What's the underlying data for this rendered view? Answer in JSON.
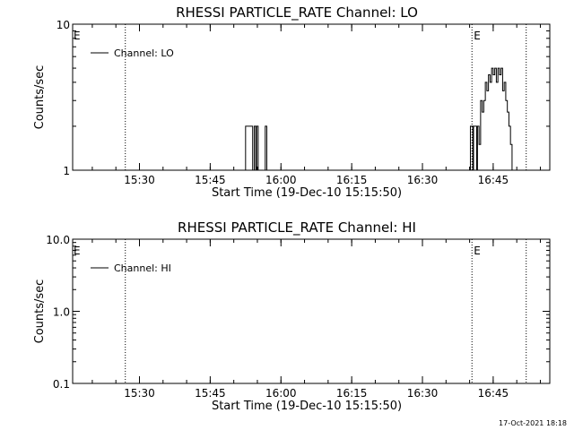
{
  "chart_data": [
    {
      "type": "line",
      "title": "RHESSI PARTICLE_RATE Channel: LO",
      "xlabel": "Start Time (19-Dec-10 15:15:50)",
      "ylabel": "Counts/sec",
      "y_scale": "log",
      "ylim": [
        1,
        10
      ],
      "y_ticks": [
        1,
        10
      ],
      "y_tick_labels": [
        "1",
        "10"
      ],
      "xlim": [
        "15:15:50",
        "16:57:00"
      ],
      "x_ticks": [
        "15:30",
        "15:45",
        "16:00",
        "16:15",
        "16:30",
        "16:45"
      ],
      "legend": {
        "placement": "top-left",
        "entries": [
          "Channel: LO"
        ]
      },
      "markers": [
        {
          "time": "15:27:00",
          "label": "",
          "style": "dotted"
        },
        {
          "time": "16:40:30",
          "label": "E",
          "style": "dotted"
        },
        {
          "time": "16:52:00",
          "label": "",
          "style": "dotted"
        }
      ],
      "edge_label_left": "E",
      "series": [
        {
          "name": "Channel: LO",
          "x": [
            "15:52:20",
            "15:52:30",
            "15:53:50",
            "15:54:00",
            "15:54:20",
            "15:54:40",
            "15:54:50",
            "15:55:10",
            "15:56:30",
            "15:56:40",
            "15:56:50",
            "15:57:00",
            "16:40:00",
            "16:40:10",
            "16:40:40",
            "16:40:50",
            "16:41:30",
            "16:41:40",
            "16:42:00",
            "16:42:20",
            "16:42:40",
            "16:43:00",
            "16:43:20",
            "16:43:40",
            "16:44:00",
            "16:44:20",
            "16:44:40",
            "16:45:00",
            "16:45:20",
            "16:45:40",
            "16:46:00",
            "16:46:20",
            "16:46:40",
            "16:47:00",
            "16:47:20",
            "16:47:40",
            "16:48:00",
            "16:48:20",
            "16:48:40",
            "16:49:00"
          ],
          "values": [
            1,
            2,
            2,
            1,
            2,
            1,
            2,
            1,
            1,
            2,
            2,
            1,
            1,
            2,
            1,
            2,
            1,
            2,
            1.5,
            3,
            2.5,
            3,
            4,
            3.5,
            4.5,
            4,
            5,
            4.5,
            5,
            4,
            5,
            4.5,
            5,
            3.5,
            4,
            3,
            2.5,
            2,
            1.5,
            1
          ]
        }
      ]
    },
    {
      "type": "line",
      "title": "RHESSI PARTICLE_RATE Channel: HI",
      "xlabel": "Start Time (19-Dec-10 15:15:50)",
      "ylabel": "Counts/sec",
      "y_scale": "log",
      "ylim": [
        0.1,
        10
      ],
      "y_ticks": [
        0.1,
        1,
        10
      ],
      "y_tick_labels": [
        "0.1",
        "1.0",
        "10.0"
      ],
      "xlim": [
        "15:15:50",
        "16:57:00"
      ],
      "x_ticks": [
        "15:30",
        "15:45",
        "16:00",
        "16:15",
        "16:30",
        "16:45"
      ],
      "legend": {
        "placement": "top-left",
        "entries": [
          "Channel: HI"
        ]
      },
      "markers": [
        {
          "time": "15:27:00",
          "label": "",
          "style": "dotted"
        },
        {
          "time": "16:40:30",
          "label": "E",
          "style": "dotted"
        },
        {
          "time": "16:52:00",
          "label": "",
          "style": "dotted"
        }
      ],
      "edge_label_left": "E",
      "series": [
        {
          "name": "Channel: HI",
          "x": [],
          "values": []
        }
      ]
    }
  ],
  "footer": {
    "timestamp": "17-Oct-2021 18:18"
  }
}
